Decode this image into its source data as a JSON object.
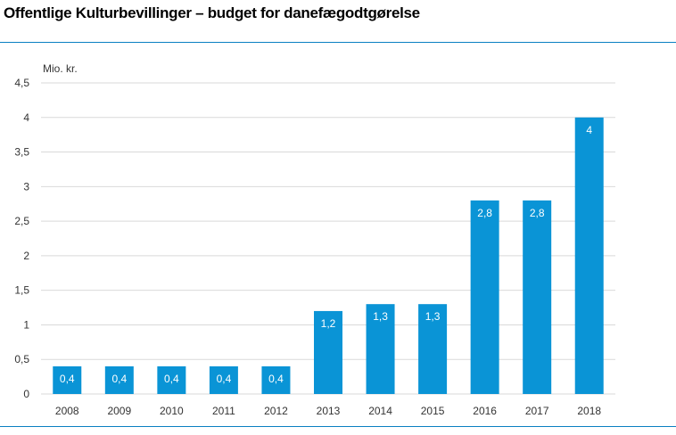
{
  "chart_data": {
    "type": "bar",
    "title": "Offentlige Kulturbevillinger – budget for danefægodtgørelse",
    "ylabel": "Mio. kr.",
    "xlabel": "",
    "categories": [
      "2008",
      "2009",
      "2010",
      "2011",
      "2012",
      "2013",
      "2014",
      "2015",
      "2016",
      "2017",
      "2018"
    ],
    "values": [
      0.4,
      0.4,
      0.4,
      0.4,
      0.4,
      1.2,
      1.3,
      1.3,
      2.8,
      2.8,
      4
    ],
    "data_labels": [
      "0,4",
      "0,4",
      "0,4",
      "0,4",
      "0,4",
      "1,2",
      "1,3",
      "1,3",
      "2,8",
      "2,8",
      "4"
    ],
    "yticks": [
      0,
      0.5,
      1,
      1.5,
      2,
      2.5,
      3,
      3.5,
      4,
      4.5
    ],
    "ytick_labels": [
      "0",
      "0,5",
      "1",
      "1,5",
      "2",
      "2,5",
      "3",
      "3,5",
      "4",
      "4,5"
    ],
    "ylim": [
      0,
      4.5
    ],
    "grid": true,
    "legend": "none",
    "colors": {
      "bar": "#0a94d6",
      "grid": "#d9d9d9",
      "rule": "#0a80c2",
      "text": "#333333",
      "data_label": "#ffffff"
    }
  }
}
